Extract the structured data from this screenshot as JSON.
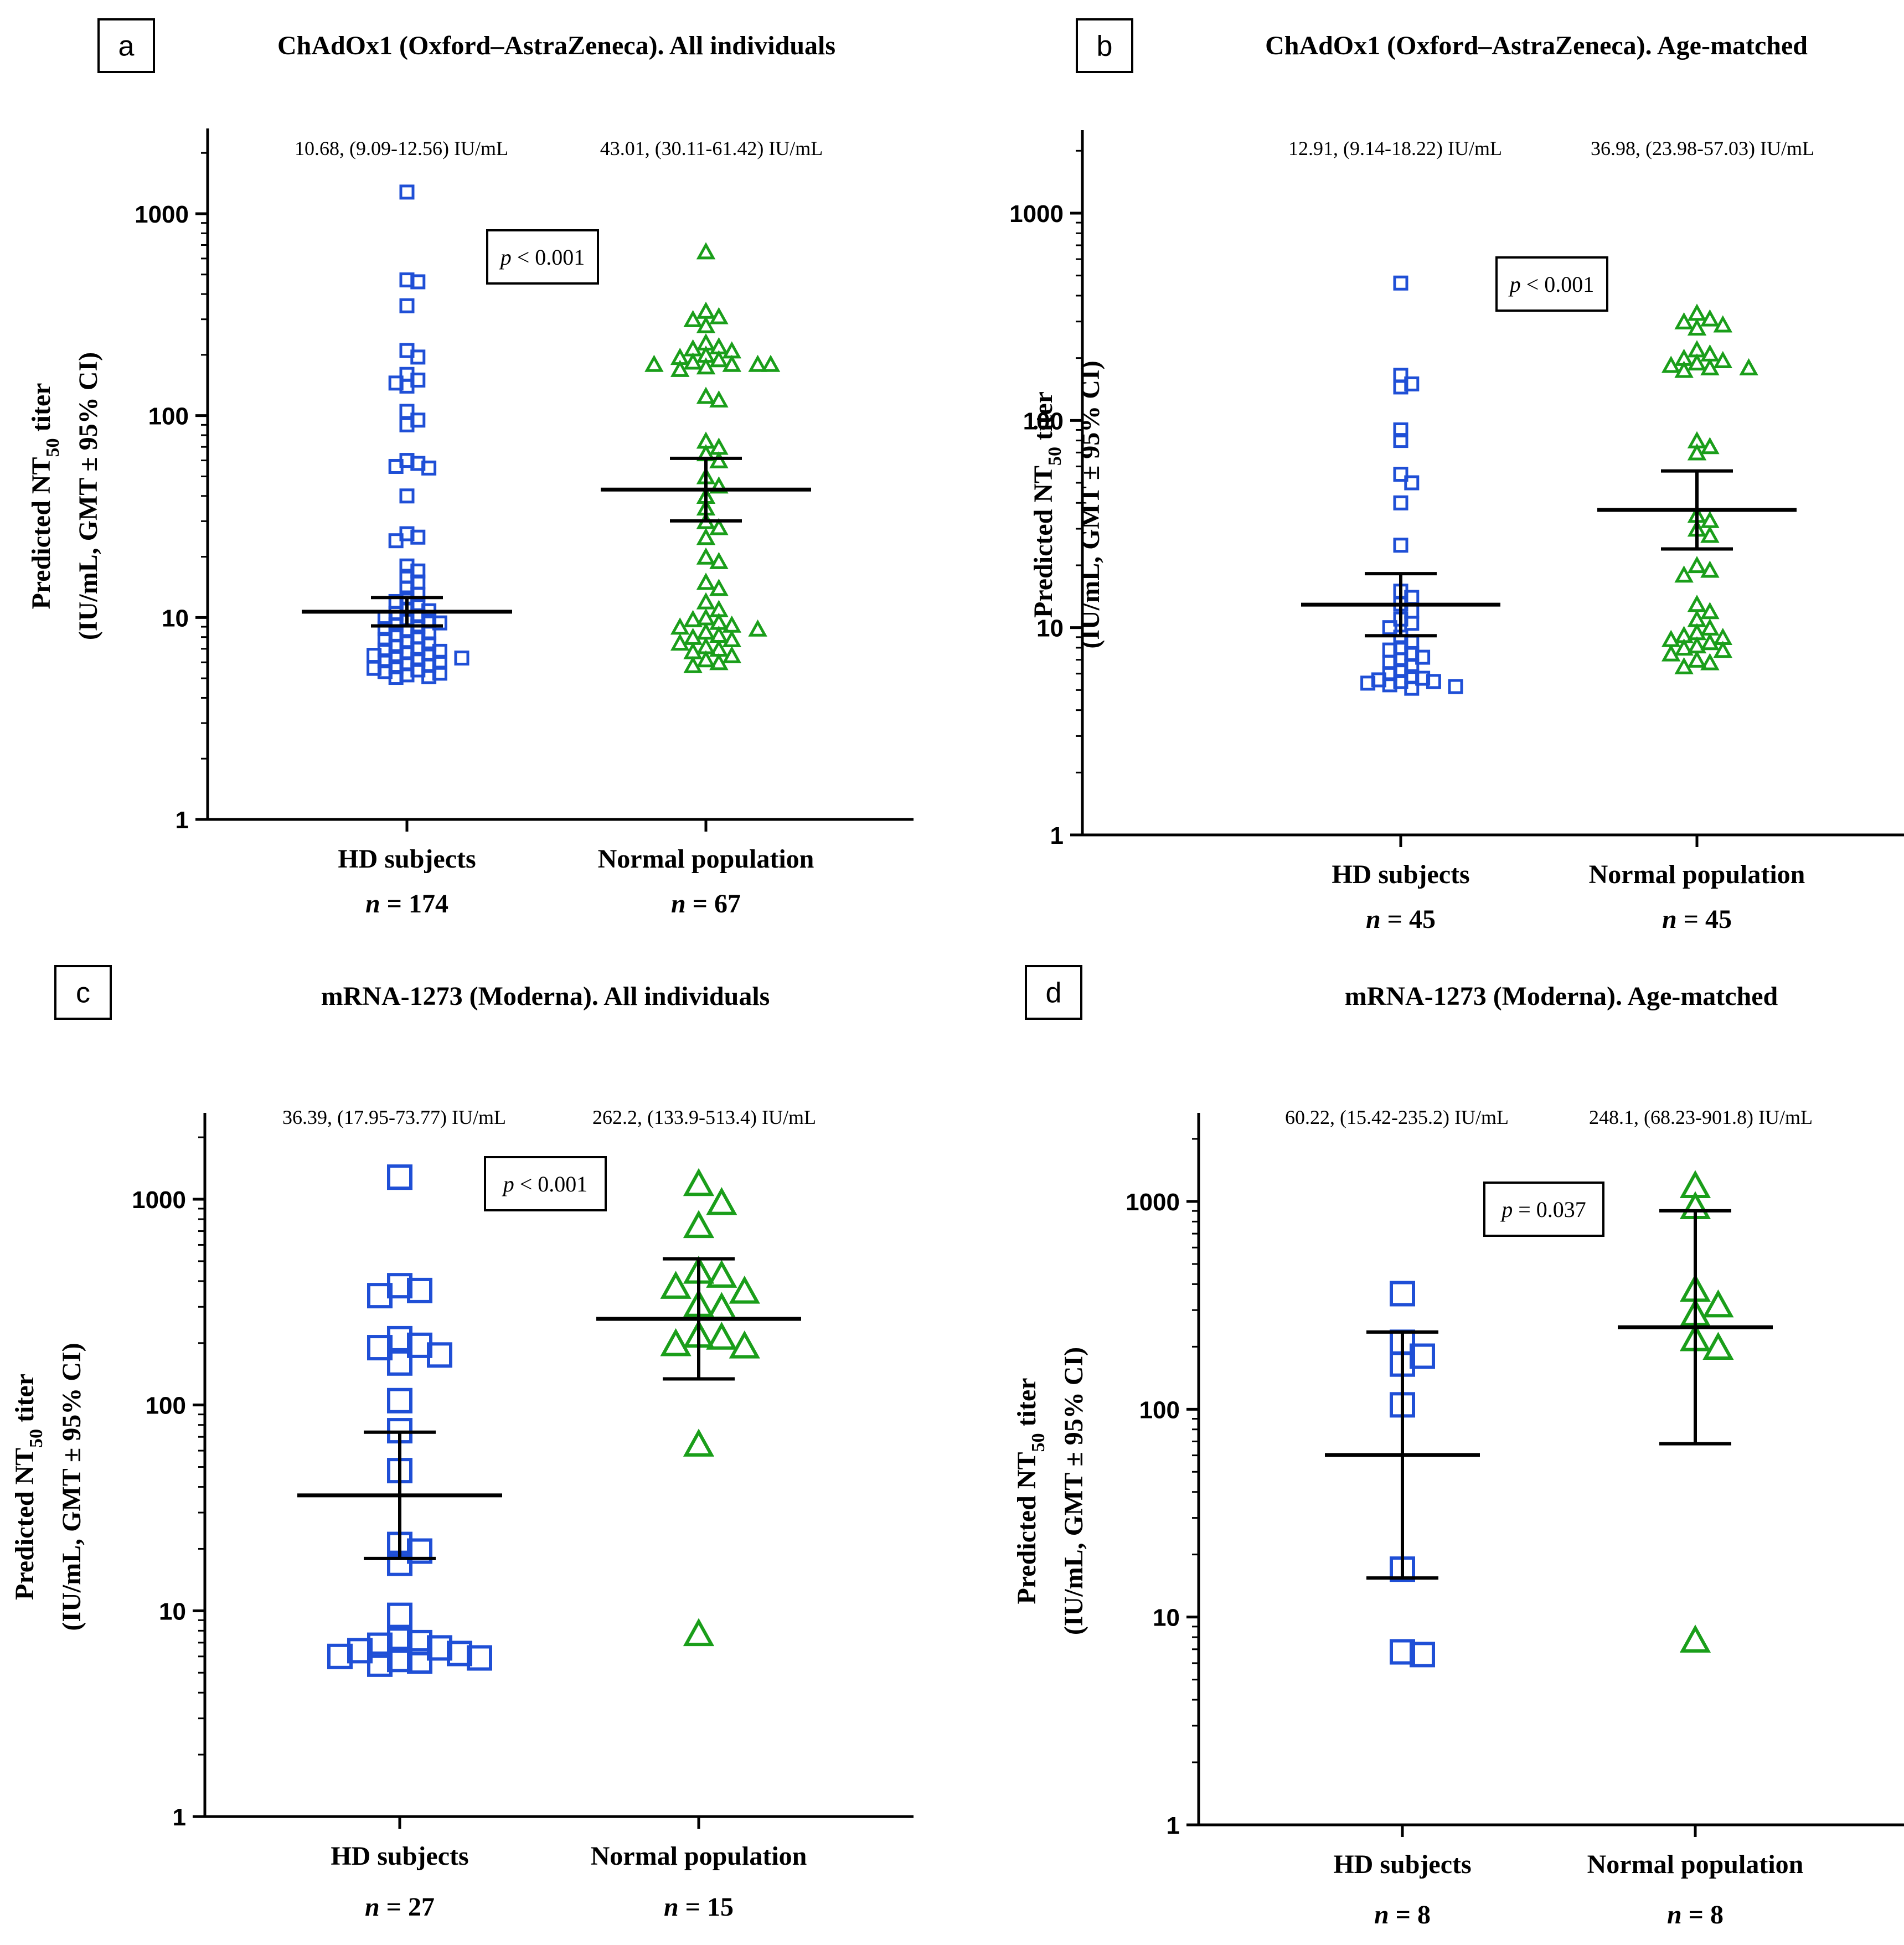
{
  "figure": {
    "colors": {
      "hd": "#1f4fd6",
      "normal": "#1a9e1a",
      "axis": "#000000"
    },
    "y_label": {
      "line1_prefix": "Predicted NT",
      "line1_sub": "50",
      "line1_suffix": " titer",
      "line2": "(IU/mL, GMT ± 95% CI)"
    },
    "n_prefix": "n",
    "n_equals": " = "
  },
  "chart_data": [
    {
      "type": "scatter",
      "panel_letter": "a",
      "title": "ChAdOx1 (Oxford–AstraZeneca). All individuals",
      "scale": "log",
      "ylim": [
        1,
        2500
      ],
      "y_ticks": [
        "1",
        "10",
        "100",
        "1000"
      ],
      "p_label": "p",
      "p_text": " < 0.001",
      "categories": [
        "HD subjects",
        "Normal population"
      ],
      "groups": [
        {
          "name": "HD subjects",
          "marker": "square",
          "n": "174",
          "gmt": 10.68,
          "ci": [
            9.09,
            12.56
          ],
          "summary": "10.68, (9.09-12.56) IU/mL",
          "values": [
            1280,
            470,
            460,
            350,
            210,
            195,
            160,
            150,
            145,
            140,
            105,
            95,
            90,
            60,
            58,
            56,
            55,
            40,
            26,
            25,
            24,
            18,
            17,
            16,
            15,
            14,
            13,
            12.5,
            12,
            11.5,
            11,
            10.8,
            10.5,
            10.2,
            10,
            9.8,
            9.6,
            9.4,
            9.2,
            9,
            8.8,
            8.6,
            8.4,
            8.2,
            8,
            7.8,
            7.6,
            7.4,
            7.2,
            7,
            6.9,
            6.8,
            6.7,
            6.6,
            6.5,
            6.4,
            6.3,
            6.2,
            6.1,
            6,
            5.9,
            5.8,
            5.7,
            5.6,
            5.5,
            5.4,
            5.3,
            5.2,
            5.1,
            5.05
          ]
        },
        {
          "name": "Normal population",
          "marker": "triangle",
          "n": "67",
          "gmt": 43.01,
          "ci": [
            30.11,
            61.42
          ],
          "summary": "43.01, (30.11-61.42) IU/mL",
          "values": [
            650,
            330,
            310,
            300,
            280,
            230,
            220,
            215,
            210,
            200,
            195,
            190,
            185,
            180,
            180,
            180,
            180,
            175,
            170,
            125,
            120,
            75,
            70,
            65,
            60,
            50,
            45,
            40,
            35,
            30,
            28,
            25,
            20,
            19,
            15,
            14,
            12,
            11,
            10,
            9.8,
            9.5,
            9.2,
            9,
            8.8,
            8.5,
            8.2,
            8,
            7.8,
            7.5,
            7.2,
            7,
            6.8,
            6.5,
            6.2,
            6,
            5.8
          ]
        }
      ]
    },
    {
      "type": "scatter",
      "panel_letter": "b",
      "title": "ChAdOx1 (Oxford–AstraZeneca). Age-matched",
      "scale": "log",
      "ylim": [
        1,
        2500
      ],
      "y_ticks": [
        "1",
        "10",
        "100",
        "1000"
      ],
      "p_label": "p",
      "p_text": " < 0.001",
      "categories": [
        "HD subjects",
        "Normal population"
      ],
      "groups": [
        {
          "name": "HD subjects",
          "marker": "square",
          "n": "45",
          "gmt": 12.91,
          "ci": [
            9.14,
            18.22
          ],
          "summary": "12.91, (9.14-18.22) IU/mL",
          "values": [
            460,
            165,
            150,
            145,
            90,
            80,
            55,
            50,
            40,
            25,
            15,
            14,
            13,
            12,
            11,
            10.5,
            10,
            9,
            8.5,
            8,
            7.8,
            7.5,
            7.2,
            7,
            6.8,
            6.5,
            6.2,
            6,
            5.8,
            5.7,
            5.6,
            5.5,
            5.5,
            5.4,
            5.3,
            5.2,
            5.1
          ]
        },
        {
          "name": "Normal population",
          "marker": "triangle",
          "n": "45",
          "gmt": 36.98,
          "ci": [
            23.98,
            57.03
          ],
          "summary": "36.98, (23.98-57.03) IU/mL",
          "values": [
            330,
            310,
            300,
            290,
            280,
            220,
            210,
            200,
            195,
            190,
            185,
            180,
            180,
            175,
            80,
            75,
            70,
            35,
            33,
            30,
            28,
            20,
            19,
            18,
            13,
            12,
            11,
            10,
            9.5,
            9.2,
            9,
            8.8,
            8.5,
            8.2,
            8,
            7.8,
            7.5,
            7,
            6.8,
            6.5
          ]
        }
      ]
    },
    {
      "type": "scatter",
      "panel_letter": "c",
      "title": "mRNA-1273 (Moderna). All individuals",
      "scale": "log",
      "ylim": [
        1,
        2500
      ],
      "y_ticks": [
        "1",
        "10",
        "100",
        "1000"
      ],
      "p_label": "p",
      "p_text": " < 0.001",
      "categories": [
        "HD subjects",
        "Normal population"
      ],
      "groups": [
        {
          "name": "HD subjects",
          "marker": "square",
          "n": "27",
          "gmt": 36.39,
          "ci": [
            17.95,
            73.77
          ],
          "summary": "36.39, (17.95-73.77) IU/mL",
          "values": [
            1280,
            380,
            360,
            340,
            210,
            195,
            190,
            175,
            160,
            105,
            75,
            48,
            21,
            19.5,
            17,
            9.5,
            7.2,
            7,
            6.8,
            6.6,
            6.4,
            6.2,
            6,
            5.9,
            5.8,
            5.7,
            5.5
          ]
        },
        {
          "name": "Normal population",
          "marker": "triangle",
          "n": "15",
          "gmt": 262.2,
          "ci": [
            133.9,
            513.4
          ],
          "summary": "262.2, (133.9-513.4) IU/mL",
          "values": [
            1200,
            970,
            750,
            450,
            430,
            380,
            360,
            310,
            300,
            220,
            215,
            200,
            195,
            65,
            7.8
          ]
        }
      ]
    },
    {
      "type": "scatter",
      "panel_letter": "d",
      "title": "mRNA-1273 (Moderna). Age-matched",
      "scale": "log",
      "ylim": [
        1,
        2500
      ],
      "y_ticks": [
        "1",
        "10",
        "100",
        "1000"
      ],
      "p_label": "p",
      "p_text": " = 0.037",
      "categories": [
        "HD subjects",
        "Normal population"
      ],
      "groups": [
        {
          "name": "HD subjects",
          "marker": "square",
          "n": "8",
          "gmt": 60.22,
          "ci": [
            15.42,
            235.2
          ],
          "summary": "60.22, (15.42-235.2) IU/mL",
          "values": [
            360,
            210,
            180,
            165,
            105,
            17,
            6.8,
            6.6
          ]
        },
        {
          "name": "Normal population",
          "marker": "triangle",
          "n": "8",
          "gmt": 248.1,
          "ci": [
            68.23,
            901.8
          ],
          "summary": "248.1, (68.23-901.8) IU/mL",
          "values": [
            1200,
            950,
            380,
            320,
            290,
            220,
            200,
            7.8
          ]
        }
      ]
    }
  ]
}
